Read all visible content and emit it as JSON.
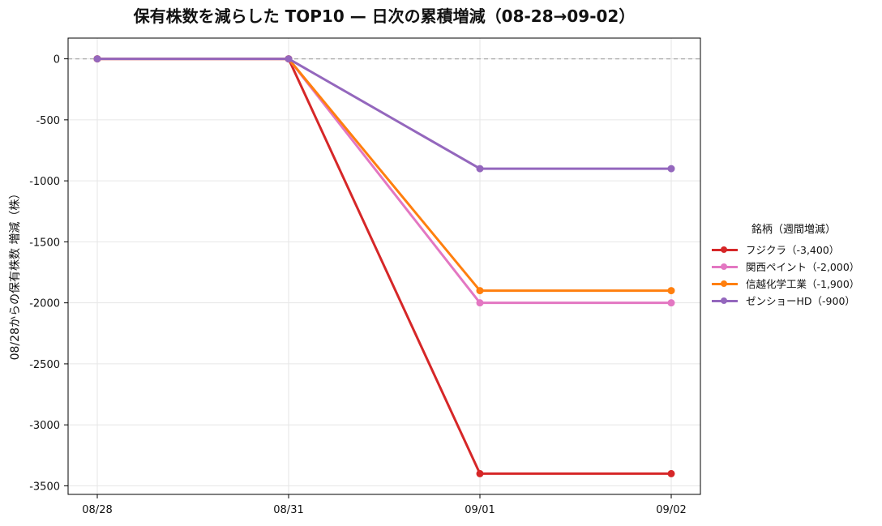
{
  "chart_data": {
    "type": "line",
    "title": "保有株数を減らした TOP10 — 日次の累積増減（08-28→09-02）",
    "xlabel": "",
    "ylabel": "08/28からの保有株数 増減（株）",
    "categories": [
      "08/28",
      "08/31",
      "09/01",
      "09/02"
    ],
    "ylim": [
      -3570,
      170
    ],
    "yticks": [
      0,
      -500,
      -1000,
      -1500,
      -2000,
      -2500,
      -3000,
      -3500
    ],
    "grid": true,
    "zero_line": true,
    "legend": {
      "title": "銘柄（週間増減）",
      "placement": "right"
    },
    "series": [
      {
        "name": "フジクラ（-3,400）",
        "color": "#d62728",
        "values": [
          0,
          0,
          -3400,
          -3400
        ]
      },
      {
        "name": "関西ペイント（-2,000）",
        "color": "#e377c2",
        "values": [
          0,
          0,
          -2000,
          -2000
        ]
      },
      {
        "name": "信越化学工業（-1,900）",
        "color": "#ff7f0e",
        "values": [
          0,
          0,
          -1900,
          -1900
        ]
      },
      {
        "name": "ゼンショーHD（-900）",
        "color": "#9467bd",
        "values": [
          0,
          0,
          -900,
          -900
        ]
      }
    ]
  }
}
